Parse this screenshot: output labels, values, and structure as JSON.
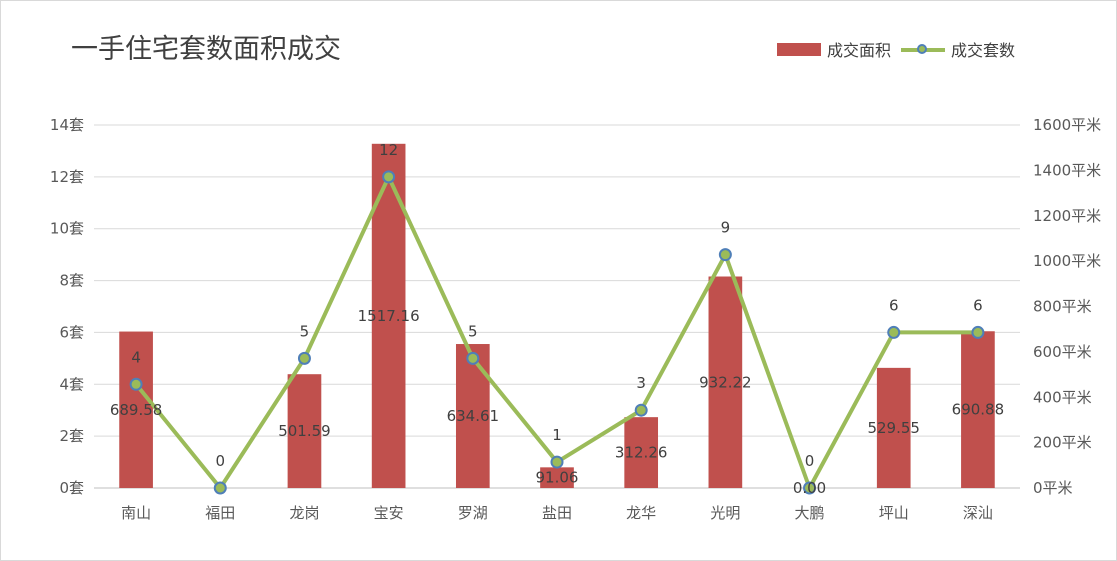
{
  "chart_data": {
    "type": "bar+line",
    "title": "一手住宅套数面积成交",
    "categories": [
      "南山",
      "福田",
      "龙岗",
      "宝安",
      "罗湖",
      "盐田",
      "龙华",
      "光明",
      "大鹏",
      "坪山",
      "深汕"
    ],
    "series": [
      {
        "name": "成交面积",
        "type": "bar",
        "axis": "right",
        "color": "#c0504d",
        "values": [
          689.58,
          0,
          501.59,
          1517.16,
          634.61,
          91.06,
          312.26,
          932.22,
          0,
          529.55,
          690.88
        ],
        "labels": [
          "689.58",
          "",
          "501.59",
          "1517.16",
          "634.61",
          "91.06",
          "312.26",
          "932.22",
          "0.00",
          "529.55",
          "690.88"
        ]
      },
      {
        "name": "成交套数",
        "type": "line",
        "axis": "left",
        "color": "#9bbb59",
        "marker_color": "#4f7fb8",
        "values": [
          4,
          0,
          5,
          12,
          5,
          1,
          3,
          9,
          0,
          6,
          6
        ],
        "labels": [
          "4",
          "0",
          "5",
          "12",
          "5",
          "1",
          "3",
          "9",
          "0",
          "6",
          "6"
        ]
      }
    ],
    "left_axis": {
      "ylim": [
        0,
        14
      ],
      "ticks": [
        0,
        2,
        4,
        6,
        8,
        10,
        12,
        14
      ],
      "tick_labels": [
        "0套",
        "2套",
        "4套",
        "6套",
        "8套",
        "10套",
        "12套",
        "14套"
      ]
    },
    "right_axis": {
      "ylim": [
        0,
        1600
      ],
      "ticks": [
        0,
        200,
        400,
        600,
        800,
        1000,
        1200,
        1400,
        1600
      ],
      "tick_labels": [
        "0平米",
        "200平米",
        "400平米",
        "600平米",
        "800平米",
        "1000平米",
        "1200平米",
        "1400平米",
        "1600平米"
      ]
    },
    "legend_position": "top-right",
    "grid": true
  }
}
